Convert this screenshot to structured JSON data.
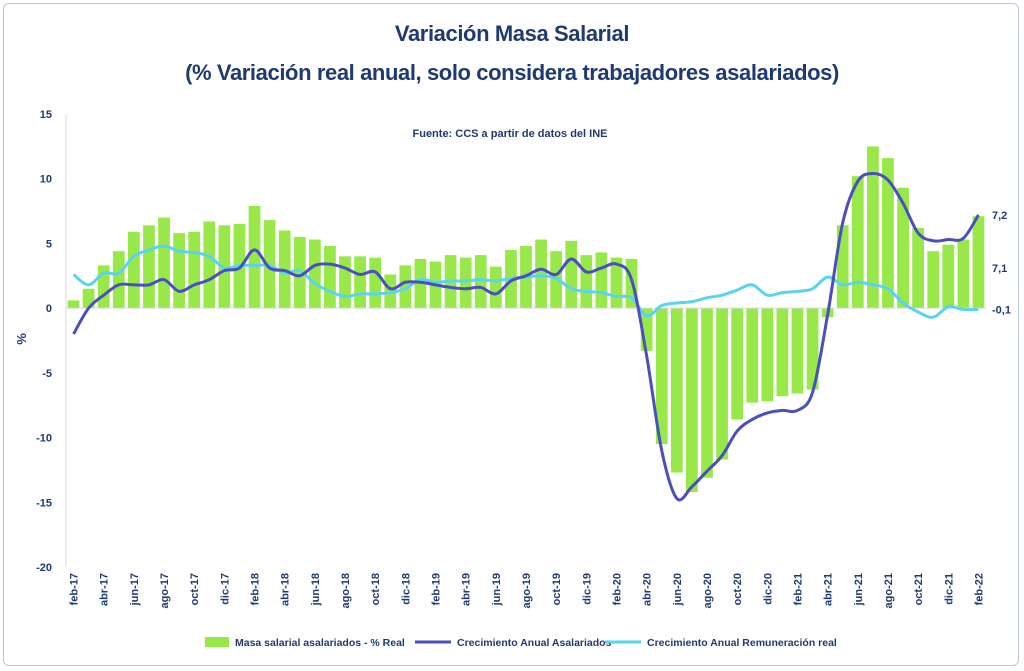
{
  "chart_data": {
    "type": "bar",
    "title": "Variación Masa Salarial",
    "subtitle": "(% Variación real anual, solo considera trabajadores asalariados)",
    "source": "Fuente: CCS a partir de datos del INE",
    "ylabel": "%",
    "ylim": [
      -20,
      15
    ],
    "yticks": [
      15,
      10,
      5,
      0,
      -5,
      -10,
      -15,
      -20
    ],
    "grid": false,
    "legend_position": "bottom",
    "x": [
      "feb-17",
      "mar-17",
      "abr-17",
      "may-17",
      "jun-17",
      "jul-17",
      "ago-17",
      "sep-17",
      "oct-17",
      "nov-17",
      "dic-17",
      "ene-18",
      "feb-18",
      "mar-18",
      "abr-18",
      "may-18",
      "jun-18",
      "jul-18",
      "ago-18",
      "sep-18",
      "oct-18",
      "nov-18",
      "dic-18",
      "ene-19",
      "feb-19",
      "mar-19",
      "abr-19",
      "may-19",
      "jun-19",
      "jul-19",
      "ago-19",
      "sep-19",
      "oct-19",
      "nov-19",
      "dic-19",
      "ene-20",
      "feb-20",
      "mar-20",
      "abr-20",
      "may-20",
      "jun-20",
      "jul-20",
      "ago-20",
      "sep-20",
      "oct-20",
      "nov-20",
      "dic-20",
      "ene-21",
      "feb-21",
      "mar-21",
      "abr-21",
      "may-21",
      "jun-21",
      "jul-21",
      "ago-21",
      "sep-21",
      "oct-21",
      "nov-21",
      "dic-21",
      "ene-22",
      "feb-22"
    ],
    "x_tick_labels": [
      "feb-17",
      "abr-17",
      "jun-17",
      "ago-17",
      "oct-17",
      "dic-17",
      "feb-18",
      "abr-18",
      "jun-18",
      "ago-18",
      "oct-18",
      "dic-18",
      "feb-19",
      "abr-19",
      "jun-19",
      "ago-19",
      "oct-19",
      "dic-19",
      "feb-20",
      "abr-20",
      "jun-20",
      "ago-20",
      "oct-20",
      "dic-20",
      "feb-21",
      "abr-21",
      "jun-21",
      "ago-21",
      "oct-21",
      "dic-21",
      "feb-22"
    ],
    "series": [
      {
        "name": "Masa salarial asalariados - % Real",
        "type": "bar",
        "color": "#99e84a",
        "values": [
          0.6,
          1.5,
          3.3,
          4.4,
          5.9,
          6.4,
          7.0,
          5.8,
          5.9,
          6.7,
          6.4,
          6.5,
          7.9,
          6.8,
          6.0,
          5.5,
          5.3,
          4.8,
          4.0,
          4.0,
          3.9,
          2.6,
          3.3,
          3.8,
          3.6,
          4.1,
          3.9,
          4.1,
          3.2,
          4.5,
          4.8,
          5.3,
          4.4,
          5.2,
          4.1,
          4.3,
          3.9,
          3.8,
          -3.3,
          -10.5,
          -12.7,
          -14.2,
          -13.1,
          -11.7,
          -8.6,
          -7.3,
          -7.2,
          -6.8,
          -6.6,
          -6.3,
          -0.7,
          6.4,
          10.2,
          12.5,
          11.6,
          9.3,
          6.2,
          4.4,
          4.9,
          5.3,
          7.1
        ]
      },
      {
        "name": "Crecimiento Anual Asalariados",
        "type": "line",
        "color": "#4a4fbf",
        "values": [
          -2.0,
          0.0,
          1.0,
          1.8,
          1.8,
          1.8,
          2.2,
          1.3,
          1.8,
          2.2,
          2.9,
          3.1,
          4.5,
          3.1,
          2.9,
          2.5,
          3.3,
          3.4,
          3.1,
          2.6,
          2.8,
          1.5,
          2.0,
          2.0,
          1.8,
          1.6,
          1.5,
          1.6,
          1.1,
          2.1,
          2.5,
          3.0,
          2.6,
          3.8,
          2.8,
          3.1,
          3.4,
          2.2,
          -3.7,
          -11.0,
          -14.7,
          -13.8,
          -12.6,
          -11.4,
          -9.5,
          -8.6,
          -8.1,
          -7.9,
          -7.9,
          -6.5,
          -0.5,
          6.6,
          9.8,
          10.4,
          9.9,
          8.1,
          5.8,
          5.2,
          5.3,
          5.4,
          7.2
        ]
      },
      {
        "name": "Crecimiento Anual Remuneración real",
        "type": "line",
        "color": "#5ad2f2",
        "values": [
          2.6,
          1.8,
          2.7,
          2.7,
          4.0,
          4.5,
          4.8,
          4.4,
          4.3,
          4.0,
          3.1,
          3.3,
          3.3,
          3.3,
          2.7,
          2.9,
          1.9,
          1.3,
          0.9,
          1.1,
          1.1,
          1.2,
          1.5,
          2.2,
          2.0,
          2.1,
          2.1,
          2.2,
          2.1,
          2.3,
          2.4,
          2.5,
          2.3,
          1.5,
          1.3,
          1.2,
          0.9,
          0.8,
          -0.6,
          0.2,
          0.4,
          0.5,
          0.8,
          1.0,
          1.4,
          1.8,
          1.0,
          1.2,
          1.3,
          1.5,
          2.4,
          1.8,
          2.0,
          1.8,
          1.5,
          0.4,
          -0.3,
          -0.7,
          0.1,
          -0.1,
          -0.1
        ]
      }
    ],
    "end_labels": [
      "7,2",
      "7,1",
      "-0,1"
    ]
  }
}
